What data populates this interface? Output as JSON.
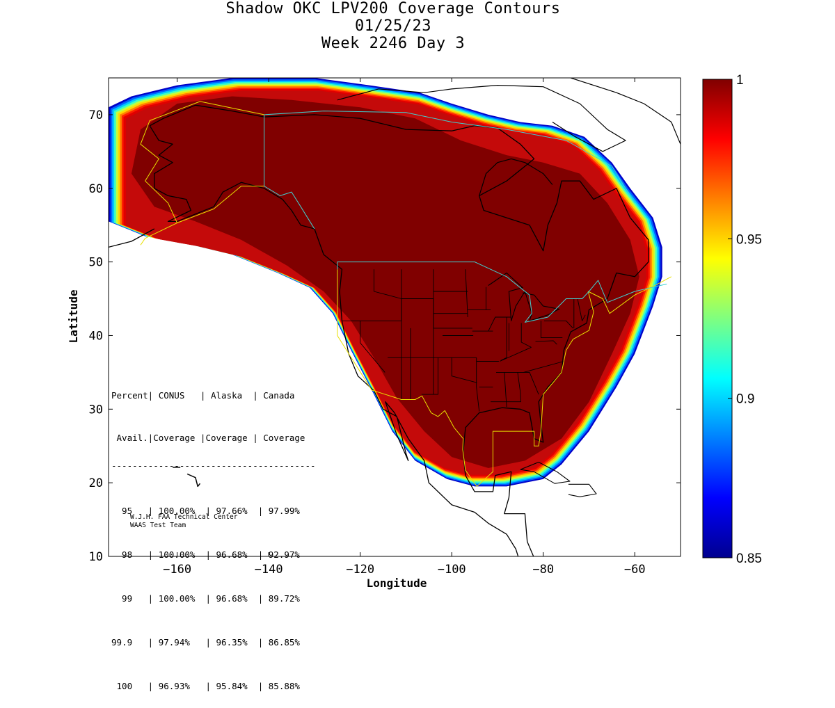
{
  "title": {
    "line1": "Shadow OKC LPV200 Coverage Contours",
    "line2": "01/25/23",
    "line3": "Week 2246 Day 3"
  },
  "chart_data": {
    "type": "heatmap",
    "xlabel": "Longitude",
    "ylabel": "Latitude",
    "xlim": [
      -175,
      -50
    ],
    "ylim": [
      10,
      75
    ],
    "xticks": [
      -160,
      -140,
      -120,
      -100,
      -80,
      -60
    ],
    "yticks": [
      10,
      20,
      30,
      40,
      50,
      60,
      70
    ],
    "colorbar": {
      "range": [
        0.85,
        1
      ],
      "ticks": [
        {
          "value": 1,
          "label": "1"
        },
        {
          "value": 0.95,
          "label": "0.95"
        },
        {
          "value": 0.9,
          "label": "0.9"
        },
        {
          "value": 0.85,
          "label": "0.85"
        }
      ],
      "colormap": "jet"
    },
    "coverage_region_outline_lonlat": [
      [
        -175,
        71
      ],
      [
        -170,
        72.5
      ],
      [
        -160,
        74
      ],
      [
        -148,
        75
      ],
      [
        -138,
        75
      ],
      [
        -130,
        75
      ],
      [
        -118,
        74
      ],
      [
        -107,
        73
      ],
      [
        -100,
        71.5
      ],
      [
        -92,
        70
      ],
      [
        -85,
        69
      ],
      [
        -78,
        68.5
      ],
      [
        -71,
        67
      ],
      [
        -65,
        63.5
      ],
      [
        -61,
        60
      ],
      [
        -56,
        56
      ],
      [
        -54,
        52
      ],
      [
        -54,
        48
      ],
      [
        -56,
        44
      ],
      [
        -60,
        37.5
      ],
      [
        -64,
        33
      ],
      [
        -70,
        27
      ],
      [
        -76,
        22.5
      ],
      [
        -80,
        20.5
      ],
      [
        -88,
        19.5
      ],
      [
        -95,
        19.5
      ],
      [
        -101,
        20.5
      ],
      [
        -108,
        23
      ],
      [
        -113,
        27
      ],
      [
        -117,
        32
      ],
      [
        -122,
        38
      ],
      [
        -126,
        43
      ],
      [
        -131,
        46.5
      ],
      [
        -138,
        48.5
      ],
      [
        -148,
        51
      ],
      [
        -158,
        52.5
      ],
      [
        -167,
        53.5
      ],
      [
        -175,
        55.5
      ]
    ],
    "core_full_coverage_outline_lonlat": [
      [
        -168,
        68
      ],
      [
        -160,
        71.5
      ],
      [
        -148,
        72.5
      ],
      [
        -135,
        72
      ],
      [
        -120,
        71
      ],
      [
        -108,
        69.5
      ],
      [
        -98,
        66.5
      ],
      [
        -88,
        64.5
      ],
      [
        -80,
        63.5
      ],
      [
        -72,
        62
      ],
      [
        -66,
        58
      ],
      [
        -61,
        53
      ],
      [
        -59,
        48
      ],
      [
        -61,
        43
      ],
      [
        -65,
        37.5
      ],
      [
        -70,
        31
      ],
      [
        -76,
        26
      ],
      [
        -84,
        23
      ],
      [
        -92,
        22
      ],
      [
        -100,
        23.5
      ],
      [
        -106,
        27
      ],
      [
        -112,
        31.5
      ],
      [
        -117,
        37
      ],
      [
        -122,
        42
      ],
      [
        -128,
        46
      ],
      [
        -136,
        49.5
      ],
      [
        -146,
        53
      ],
      [
        -156,
        55.5
      ],
      [
        -165,
        57.5
      ],
      [
        -170,
        62
      ]
    ],
    "regions": [
      {
        "name": "CONUS",
        "availability": [
          {
            "percent": "95",
            "coverage": "100.00%"
          },
          {
            "percent": "98",
            "coverage": "100.00%"
          },
          {
            "percent": "99",
            "coverage": "100.00%"
          },
          {
            "percent": "99.9",
            "coverage": "97.94%"
          },
          {
            "percent": "100",
            "coverage": "96.93%"
          }
        ]
      },
      {
        "name": "Alaska",
        "availability": [
          {
            "percent": "95",
            "coverage": "97.66%"
          },
          {
            "percent": "98",
            "coverage": "96.68%"
          },
          {
            "percent": "99",
            "coverage": "96.68%"
          },
          {
            "percent": "99.9",
            "coverage": "96.35%"
          },
          {
            "percent": "100",
            "coverage": "95.84%"
          }
        ]
      },
      {
        "name": "Canada",
        "availability": [
          {
            "percent": "95",
            "coverage": "97.99%"
          },
          {
            "percent": "98",
            "coverage": "92.97%"
          },
          {
            "percent": "99",
            "coverage": "89.72%"
          },
          {
            "percent": "99.9",
            "coverage": "86.85%"
          },
          {
            "percent": "100",
            "coverage": "85.88%"
          }
        ]
      }
    ],
    "grid": false
  },
  "stats_table": {
    "header1": "Percent| CONUS   | Alaska  | Canada",
    "header2": " Avail.|Coverage |Coverage | Coverage",
    "rule": "---------------------------------------",
    "rows": [
      "  95   | 100.00%  | 97.66%  | 97.99%",
      "  98   | 100.00%  | 96.68%  | 92.97%",
      "  99   | 100.00%  | 96.68%  | 89.72%",
      "99.9   | 97.94%   | 96.35%  | 86.85%",
      " 100   | 96.93%   | 95.84%  | 85.88%"
    ]
  },
  "credits": {
    "line1": "W.J.H. FAA Technical Center",
    "line2": "WAAS Test Team"
  },
  "colors": {
    "core": "#800000",
    "ring_red": "#c40a0a",
    "boundary_yellow": "#e8e000",
    "boundary_cyan": "#40d0d0"
  }
}
